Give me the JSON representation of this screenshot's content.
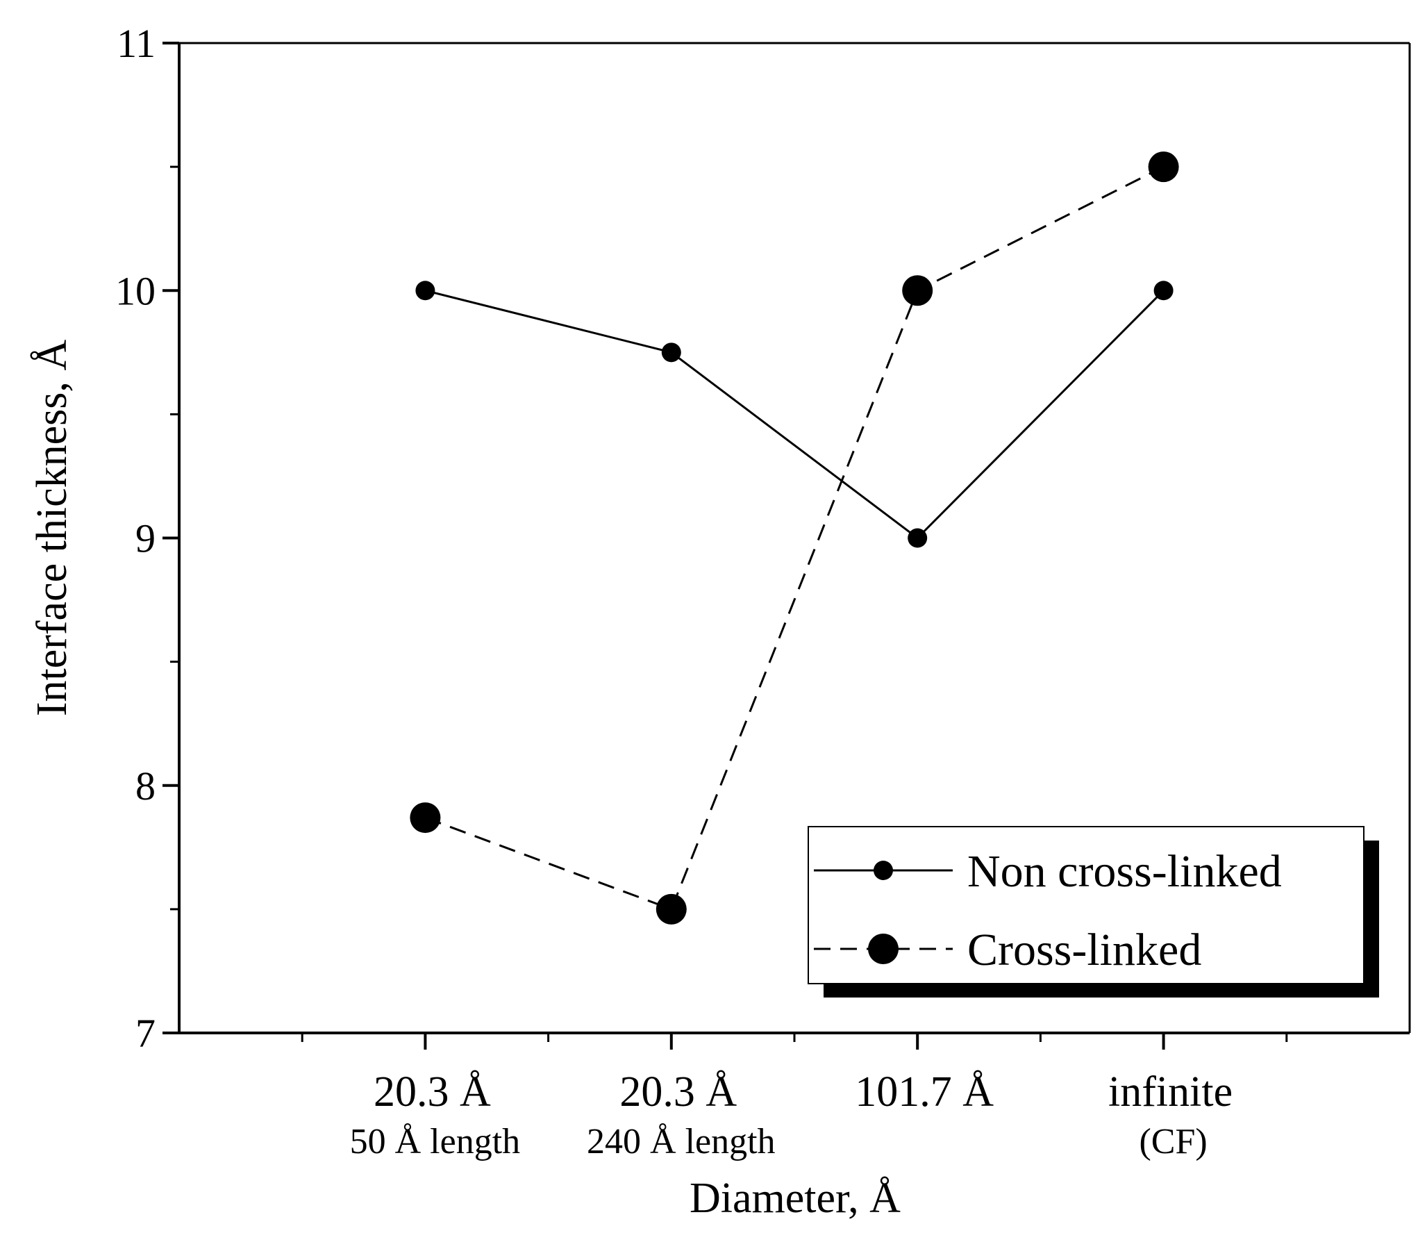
{
  "chart_data": {
    "type": "line",
    "title": "",
    "xlabel": "Diameter, Å",
    "ylabel": "Interface thickness, Å",
    "ylim": [
      7,
      11
    ],
    "yticks": [
      7,
      8,
      9,
      10,
      11
    ],
    "categories": [
      {
        "main": "20.3 Å",
        "sub": "50 Å length"
      },
      {
        "main": "20.3 Å",
        "sub": "240 Å length"
      },
      {
        "main": "101.7 Å",
        "sub": ""
      },
      {
        "main": "infinite",
        "sub": "(CF)"
      }
    ],
    "series": [
      {
        "name": "Non cross-linked",
        "line_style": "solid",
        "marker": "small-dot",
        "values": [
          10.0,
          9.75,
          9.0,
          10.0
        ]
      },
      {
        "name": "Cross-linked",
        "line_style": "dashed",
        "marker": "large-dot",
        "values": [
          7.87,
          7.5,
          10.0,
          10.5
        ]
      }
    ],
    "legend_position": "bottom-right",
    "grid": false,
    "colors": {
      "line": "#000000",
      "background": "#ffffff"
    }
  }
}
